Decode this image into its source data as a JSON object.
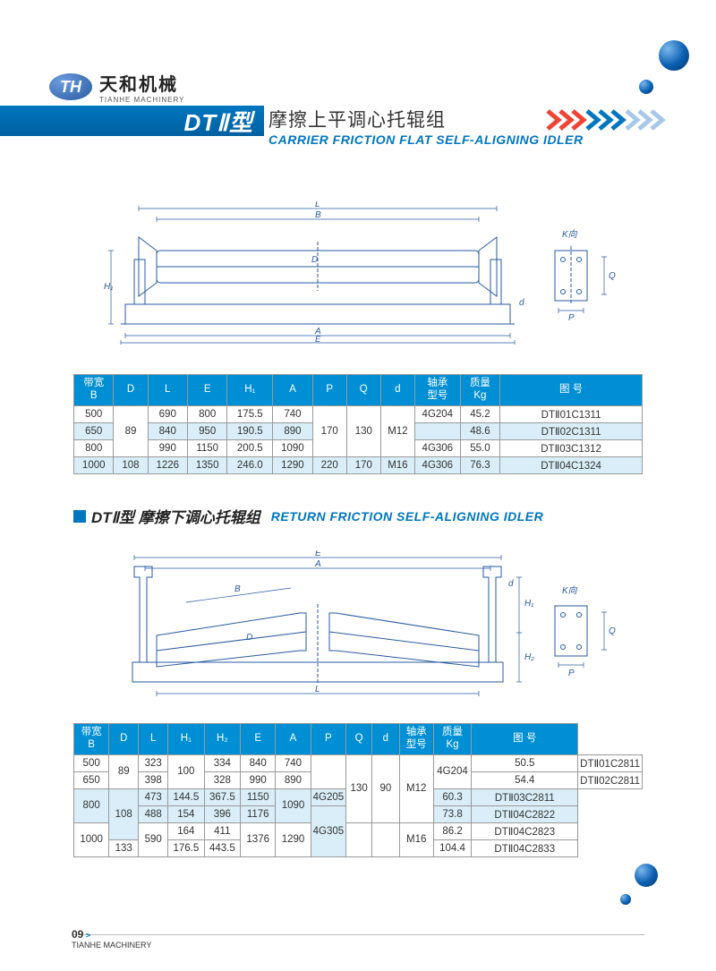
{
  "logo": {
    "mark": "TH",
    "cn": "天和机械",
    "en": "TIANHE MACHINERY"
  },
  "header": {
    "band": "DTⅡ型",
    "title_cn": "摩擦上平调心托辊组",
    "title_en": "CARRIER FRICTION FLAT SELF-ALIGNING IDLER"
  },
  "colors": {
    "brand_blue": "#0076c0",
    "th_bg": "#008fd5",
    "alt_row": "#d9eef9",
    "ball_light": "#7bb8f0",
    "ball_dark": "#053a70"
  },
  "table1": {
    "headers": [
      "带宽\nB",
      "D",
      "L",
      "E",
      "H₁",
      "A",
      "P",
      "Q",
      "d",
      "轴承\n型号",
      "质量\nKg",
      "图 号"
    ],
    "col_widths_pct": [
      7,
      6,
      7,
      7,
      8,
      7,
      6,
      6,
      6,
      8,
      7,
      25
    ],
    "rows": [
      {
        "cells": [
          "500",
          {
            "v": "89",
            "rs": 3
          },
          "690",
          "800",
          "175.5",
          "740",
          {
            "v": "170",
            "rs": 3
          },
          {
            "v": "130",
            "rs": 3
          },
          {
            "v": "M12",
            "rs": 3
          },
          "4G204",
          "45.2",
          "DTⅡ01C1311"
        ],
        "alt": false
      },
      {
        "cells": [
          "650",
          null,
          "840",
          "950",
          "190.5",
          "890",
          null,
          null,
          null,
          "",
          "48.6",
          "DTⅡ02C1311"
        ],
        "alt": true
      },
      {
        "cells": [
          "800",
          null,
          "990",
          "1150",
          "200.5",
          "1090",
          null,
          null,
          null,
          "4G306",
          "55.0",
          "DTⅡ03C1312"
        ],
        "alt": false
      },
      {
        "cells": [
          "1000",
          "108",
          "1226",
          "1350",
          "246.0",
          "1290",
          "220",
          "170",
          "M16",
          "4G306",
          "76.3",
          "DTⅡ04C1324"
        ],
        "alt": true
      }
    ]
  },
  "section2": {
    "label": "DTⅡ型 摩擦下调心托辊组",
    "en": "RETURN FRICTION SELF-ALIGNING IDLER"
  },
  "table2": {
    "headers": [
      "带宽\nB",
      "D",
      "L",
      "H₁",
      "H₂",
      "E",
      "A",
      "P",
      "Q",
      "d",
      "轴承\n型号",
      "质量\nKg",
      "图 号"
    ],
    "col_widths_pct": [
      7,
      6,
      6,
      7,
      7,
      7,
      7,
      5,
      5,
      6,
      7,
      7,
      23
    ],
    "rows": [
      {
        "cells": [
          "500",
          {
            "v": "89",
            "rs": 2
          },
          "323",
          {
            "v": "100",
            "rs": 2
          },
          "334",
          "840",
          "740",
          {
            "v": "",
            "rs": 2
          },
          {
            "v": "130",
            "rs": 4
          },
          {
            "v": "90",
            "rs": 4
          },
          {
            "v": "M12",
            "rs": 4
          },
          {
            "v": "4G204",
            "rs": 2
          },
          "50.5",
          "DTⅡ01C2811"
        ],
        "alt": false
      },
      {
        "cells": [
          "650",
          null,
          "398",
          null,
          "328",
          "990",
          "890",
          null,
          null,
          null,
          null,
          null,
          "54.4",
          "DTⅡ02C2811"
        ],
        "alt": false
      },
      {
        "cells": [
          {
            "v": "800",
            "rs": 2
          },
          {
            "v": "108",
            "rs": 3
          },
          "473",
          "144.5",
          "367.5",
          "1150",
          {
            "v": "1090",
            "rs": 2
          },
          null,
          null,
          null,
          "4G205",
          "60.3",
          "DTⅡ03C2811"
        ],
        "alt": true
      },
      {
        "cells": [
          null,
          null,
          "488",
          "154",
          "396",
          "1176",
          null,
          null,
          null,
          null,
          {
            "v": "4G305",
            "rs": 3
          },
          "73.8",
          "DTⅡ04C2822"
        ],
        "alt": true
      },
      {
        "cells": [
          {
            "v": "1000",
            "rs": 2
          },
          null,
          {
            "v": "590",
            "rs": 2
          },
          "164",
          "411",
          {
            "v": "1376",
            "rs": 2
          },
          {
            "v": "1290",
            "rs": 2
          },
          {
            "v": "",
            "rs": 2
          },
          {
            "v": "",
            "rs": 2
          },
          {
            "v": "M16",
            "rs": 2
          },
          null,
          "86.2",
          "DTⅡ04C2823"
        ],
        "alt": false
      },
      {
        "cells": [
          null,
          "133",
          null,
          "176.5",
          "443.5",
          null,
          null,
          null,
          null,
          null,
          null,
          "104.4",
          "DTⅡ04C2833"
        ],
        "alt": false
      }
    ]
  },
  "diagram_labels": {
    "L": "L",
    "B": "B",
    "D": "D",
    "H1": "H₁",
    "A": "A",
    "E": "E",
    "K": "K向",
    "P": "P",
    "Q": "Q",
    "d": "d",
    "H2": "H₂"
  },
  "footer": {
    "page": "09",
    "brand": "TIANHE MACHINERY"
  }
}
